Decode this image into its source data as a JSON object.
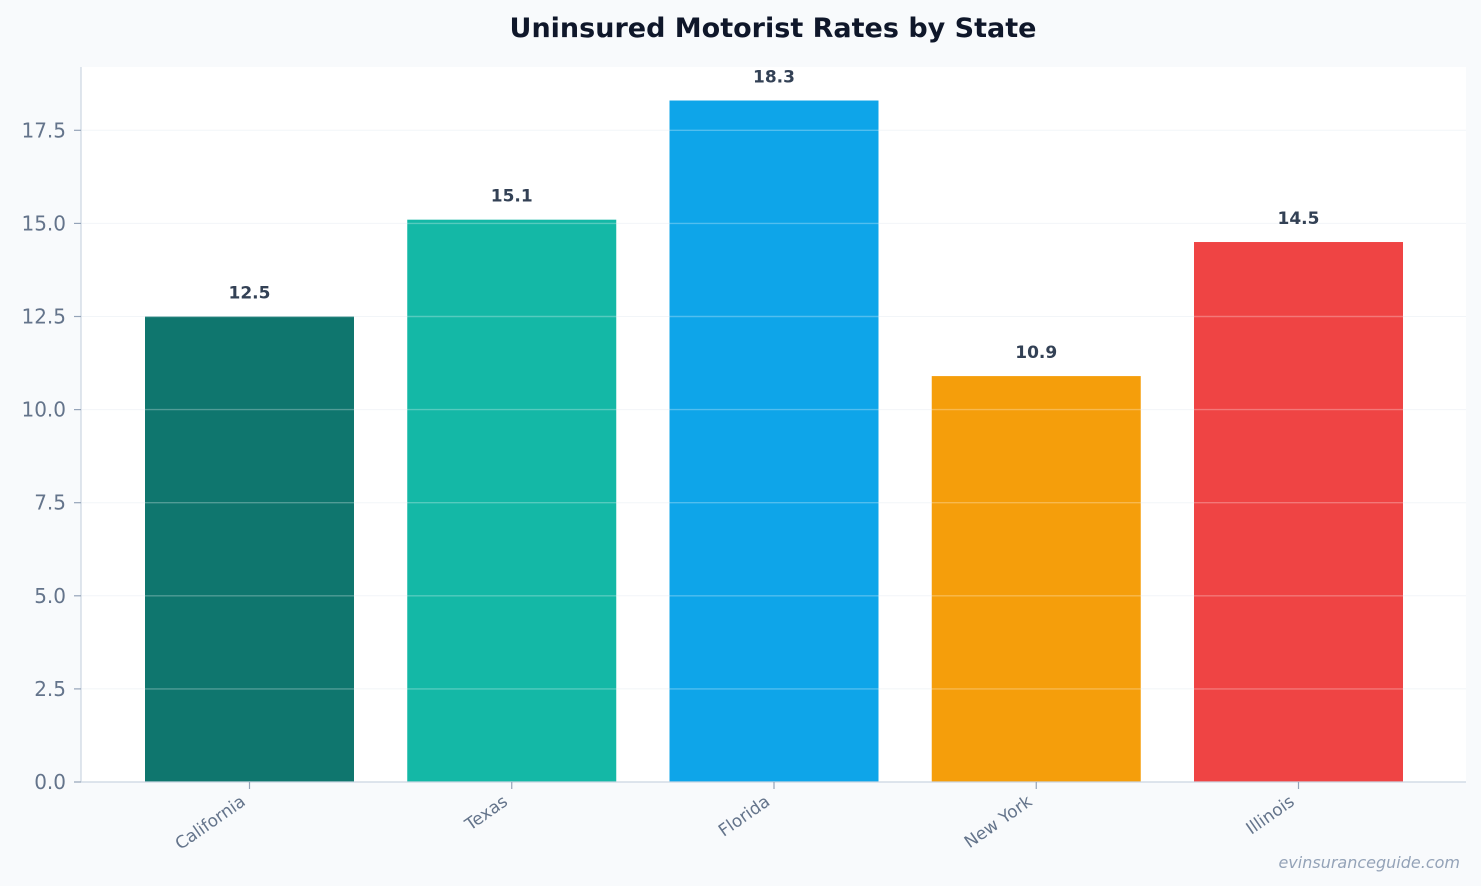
{
  "chart_data": {
    "type": "bar",
    "title": "Uninsured Motorist Rates by State",
    "xlabel": "",
    "ylabel": "",
    "categories": [
      "California",
      "Texas",
      "Florida",
      "New York",
      "Illinois"
    ],
    "values": [
      12.5,
      15.1,
      18.3,
      10.9,
      14.5
    ],
    "value_labels": [
      "12.5",
      "15.1",
      "18.3",
      "10.9",
      "14.5"
    ],
    "colors": [
      "#0f766e",
      "#14b8a6",
      "#0ea5e9",
      "#f59e0b",
      "#ef4444"
    ],
    "ylim": [
      0,
      19.2
    ],
    "yticks": [
      0,
      2.5,
      5,
      7.5,
      10,
      12.5,
      15,
      17.5
    ],
    "ytick_labels": [
      "0.0",
      "2.5",
      "5.0",
      "7.5",
      "10.0",
      "12.5",
      "15.0",
      "17.5"
    ],
    "grid": true,
    "legend": "none"
  },
  "watermark": "evinsuranceguide.com"
}
